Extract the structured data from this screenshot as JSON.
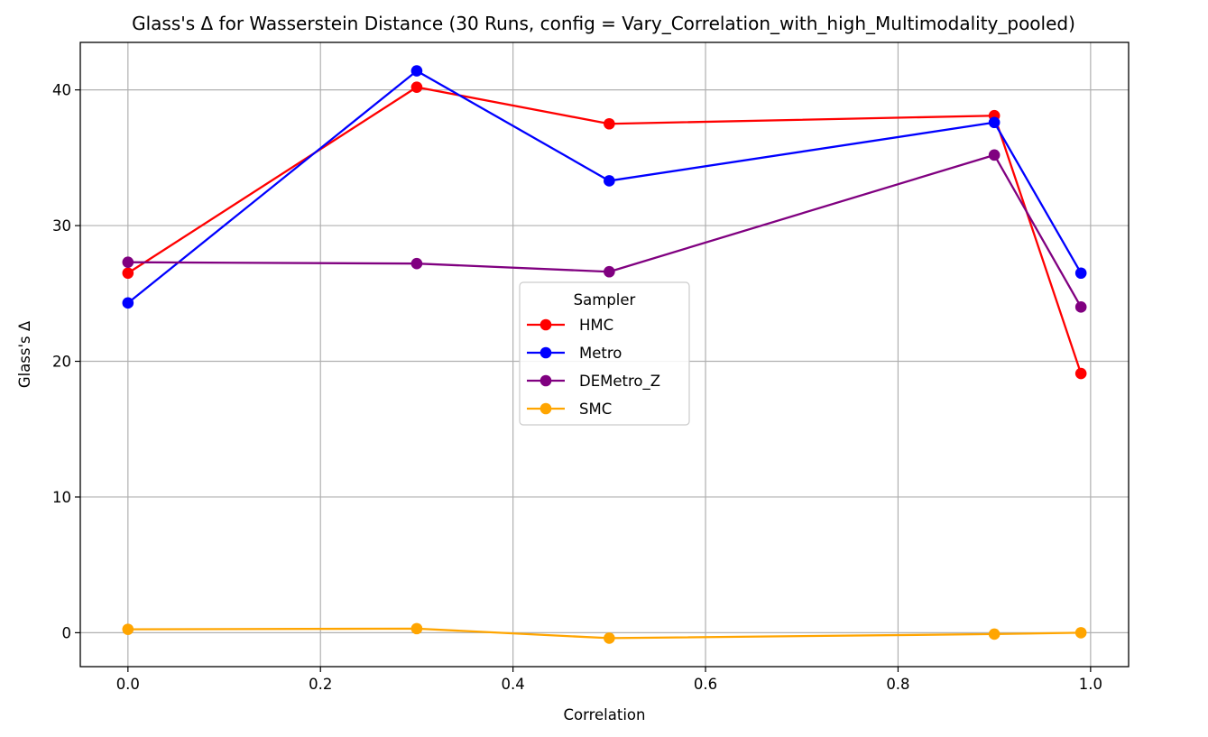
{
  "chart_data": {
    "type": "line",
    "title": "Glass's Δ for Wasserstein Distance (30 Runs, config = Vary_Correlation_with_high_Multimodality_pooled)",
    "xlabel": "Correlation",
    "ylabel": "Glass's Δ",
    "xlim": [
      -0.0495,
      1.0395
    ],
    "ylim": [
      -2.5,
      43.5
    ],
    "xticks": [
      0.0,
      0.2,
      0.4,
      0.6,
      0.8,
      1.0
    ],
    "xtick_labels": [
      "0.0",
      "0.2",
      "0.4",
      "0.6",
      "0.8",
      "1.0"
    ],
    "yticks": [
      0,
      10,
      20,
      30,
      40
    ],
    "ytick_labels": [
      "0",
      "10",
      "20",
      "30",
      "40"
    ],
    "grid": true,
    "legend": {
      "title": "Sampler",
      "placement": "center"
    },
    "x": [
      0.0,
      0.3,
      0.5,
      0.9,
      0.99
    ],
    "series": [
      {
        "name": "HMC",
        "color": "#ff0000",
        "values": [
          26.5,
          40.2,
          37.5,
          38.1,
          19.1
        ]
      },
      {
        "name": "Metro",
        "color": "#0000ff",
        "values": [
          24.3,
          41.4,
          33.3,
          37.6,
          26.5
        ]
      },
      {
        "name": "DEMetro_Z",
        "color": "#800080",
        "values": [
          27.3,
          27.2,
          26.6,
          35.2,
          24.0
        ]
      },
      {
        "name": "SMC",
        "color": "#ffa500",
        "values": [
          0.25,
          0.3,
          -0.4,
          -0.1,
          0.0
        ]
      }
    ]
  }
}
